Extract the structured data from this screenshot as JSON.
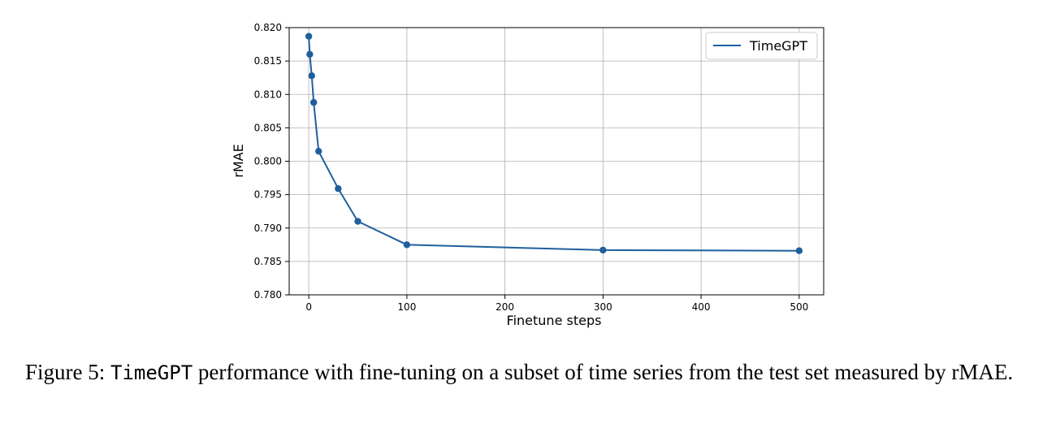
{
  "chart_data": {
    "type": "line",
    "xlabel": "Finetune steps",
    "ylabel": "rMAE",
    "xlim": [
      -20,
      525
    ],
    "ylim": [
      0.78,
      0.82
    ],
    "xticks": [
      0,
      100,
      200,
      300,
      400,
      500
    ],
    "xtick_labels": [
      "0",
      "100",
      "200",
      "300",
      "400",
      "500"
    ],
    "yticks": [
      0.78,
      0.785,
      0.79,
      0.795,
      0.8,
      0.805,
      0.81,
      0.815,
      0.82
    ],
    "ytick_labels": [
      "0.780",
      "0.785",
      "0.790",
      "0.795",
      "0.800",
      "0.805",
      "0.810",
      "0.815",
      "0.820"
    ],
    "grid": true,
    "legend_position": "top-right",
    "series": [
      {
        "name": "TimeGPT",
        "color": "#1f5f9e",
        "x": [
          0,
          1,
          3,
          5,
          10,
          30,
          50,
          100,
          300,
          500
        ],
        "y": [
          0.8187,
          0.816,
          0.8128,
          0.8088,
          0.8015,
          0.7959,
          0.791,
          0.7875,
          0.7867,
          0.7866
        ]
      }
    ]
  },
  "caption": {
    "prefix": "Figure 5: ",
    "model": "TimeGPT",
    "rest": " performance with fine-tuning on a subset of time series from the test set measured by rMAE."
  }
}
